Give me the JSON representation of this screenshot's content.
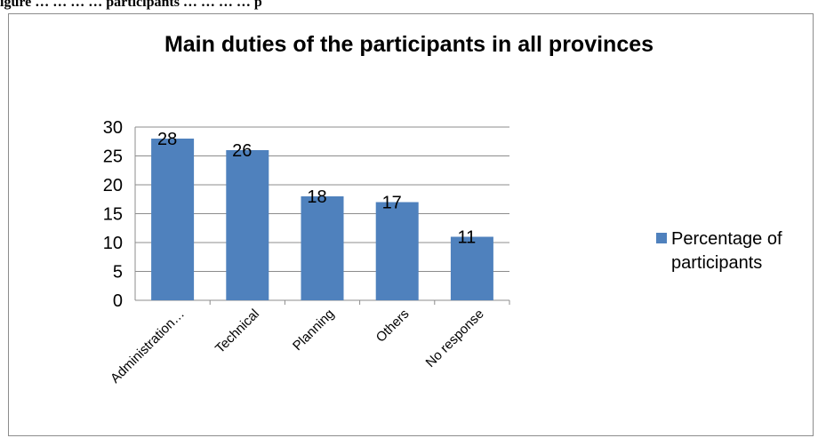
{
  "figure_caption": "igure … … … … participants … … … … p",
  "chart_data": {
    "type": "bar",
    "title": "Main duties of the participants in all provinces",
    "categories": [
      "Administration…",
      "Technical",
      "Planning",
      "Others",
      "No response"
    ],
    "series": [
      {
        "name": "Percentage of participants",
        "values": [
          28,
          26,
          18,
          17,
          11
        ],
        "color": "#4f81bd"
      }
    ],
    "data_labels": [
      "28",
      "26",
      "18",
      "17",
      "11"
    ],
    "y_ticks": [
      0,
      5,
      10,
      15,
      20,
      25,
      30
    ],
    "ylim": [
      0,
      30
    ],
    "grid": true,
    "legend_position": "right"
  }
}
